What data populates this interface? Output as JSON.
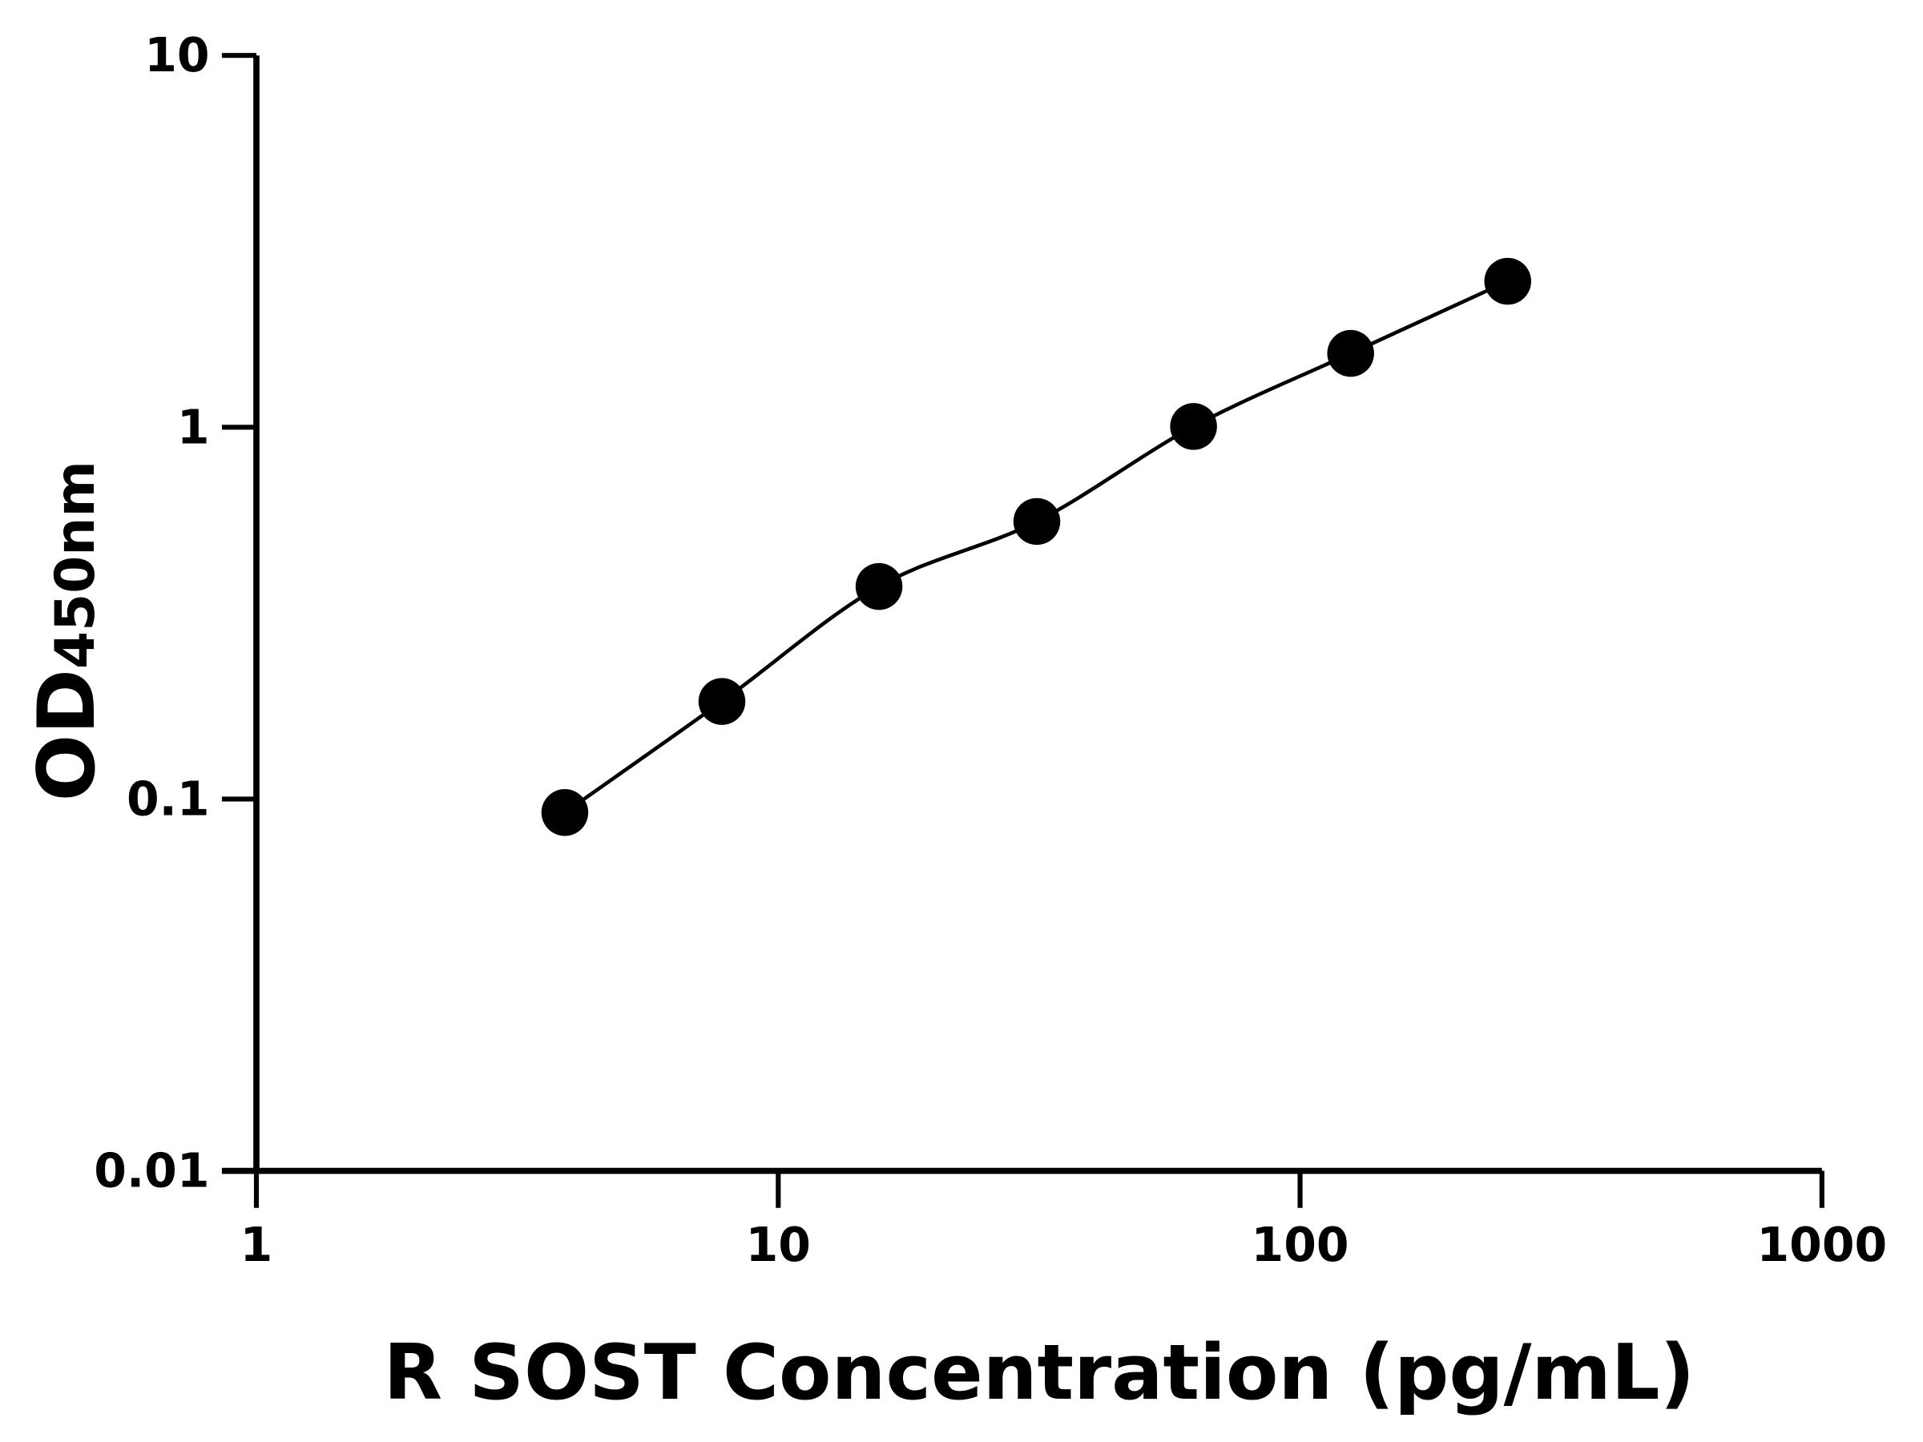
{
  "chart_data": {
    "type": "scatter",
    "title": "",
    "xlabel": "R SOST Concentration (pg/mL)",
    "ylabel_main": "OD",
    "ylabel_sub": "450nm",
    "x_scale": "log",
    "y_scale": "log",
    "xlim": [
      1,
      1000
    ],
    "ylim": [
      0.01,
      10
    ],
    "x_ticks": [
      "1",
      "10",
      "100",
      "1000"
    ],
    "y_ticks": [
      "0.01",
      "0.1",
      "1",
      "10"
    ],
    "grid": false,
    "legend": "none",
    "fit_curve": true,
    "colors": {
      "points": "#000000",
      "line": "#000000"
    },
    "series": [
      {
        "x": [
          3.9,
          7.8,
          15.6,
          31.3,
          62.5,
          125,
          250
        ],
        "y": [
          0.092,
          0.183,
          0.373,
          0.558,
          1.005,
          1.58,
          2.47
        ]
      }
    ]
  }
}
